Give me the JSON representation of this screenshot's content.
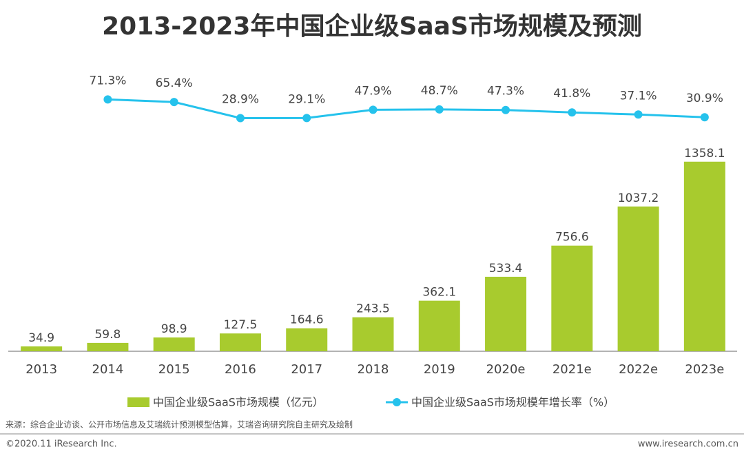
{
  "chart_data": {
    "type": "bar_line",
    "title": "2013-2023年中国企业级SaaS市场规模及预测",
    "categories": [
      "2013",
      "2014",
      "2015",
      "2016",
      "2017",
      "2018",
      "2019",
      "2020e",
      "2021e",
      "2022e",
      "2023e"
    ],
    "ylim": [
      0,
      1500
    ],
    "y2lim": [
      0,
      100
    ],
    "legend": "bottom",
    "series": [
      {
        "name": "中国企业级SaaS市场规模（亿元）",
        "type": "bar",
        "color": "#a8cb2e",
        "values": [
          34.9,
          59.8,
          98.9,
          127.5,
          164.6,
          243.5,
          362.1,
          533.4,
          756.6,
          1037.2,
          1358.1
        ]
      },
      {
        "name": "中国企业级SaaS市场规模年增长率（%）",
        "type": "line",
        "axis": "y2",
        "color": "#25c2ec",
        "values": [
          null,
          71.3,
          65.4,
          28.9,
          29.1,
          47.9,
          48.7,
          47.3,
          41.8,
          37.1,
          30.9
        ],
        "value_labels": [
          null,
          "71.3%",
          "65.4%",
          "28.9%",
          "29.1%",
          "47.9%",
          "48.7%",
          "47.3%",
          "41.8%",
          "37.1%",
          "30.9%"
        ]
      }
    ]
  },
  "footer": {
    "source": "来源：综合企业访谈、公开市场信息及艾瑞统计预测模型估算，艾瑞咨询研究院自主研究及绘制",
    "copyright": "©2020.11 iResearch Inc.",
    "website": "www.iresearch.com.cn"
  }
}
